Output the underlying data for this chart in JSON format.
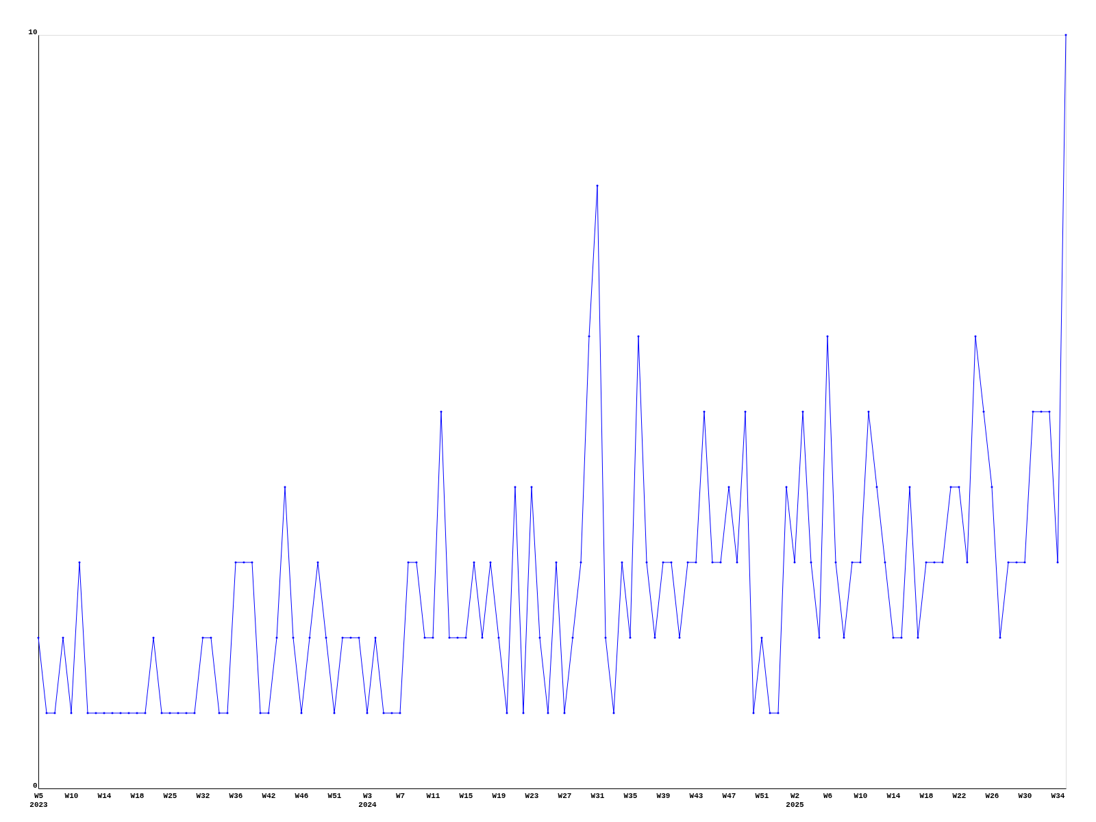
{
  "chart_data": {
    "type": "line",
    "categories": [
      "W5\n2023",
      null,
      null,
      null,
      "W10",
      null,
      null,
      null,
      "W14",
      null,
      null,
      null,
      "W18",
      null,
      null,
      null,
      "W25",
      null,
      null,
      null,
      "W32",
      null,
      null,
      null,
      "W36",
      null,
      null,
      null,
      "W42",
      null,
      null,
      null,
      "W46",
      null,
      null,
      null,
      "W51",
      null,
      null,
      null,
      "W3\n2024",
      null,
      null,
      null,
      "W7",
      null,
      null,
      null,
      "W11",
      null,
      null,
      null,
      "W15",
      null,
      null,
      null,
      "W19",
      null,
      null,
      null,
      "W23",
      null,
      null,
      null,
      "W27",
      null,
      null,
      null,
      "W31",
      null,
      null,
      null,
      "W35",
      null,
      null,
      null,
      "W39",
      null,
      null,
      null,
      "W43",
      null,
      null,
      null,
      "W47",
      null,
      null,
      null,
      "W51",
      null,
      null,
      null,
      "W2\n2025",
      null,
      null,
      null,
      "W6",
      null,
      null,
      null,
      "W10",
      null,
      null,
      null,
      "W14",
      null,
      null,
      null,
      "W18",
      null,
      null,
      null,
      "W22",
      null,
      null,
      null,
      "W26",
      null,
      null,
      null,
      "W30",
      null,
      null,
      null,
      "W34",
      null
    ],
    "series": [
      {
        "color": "#0000ff",
        "values": [
          2,
          1,
          1,
          2,
          1,
          3,
          1,
          1,
          1,
          1,
          1,
          1,
          1,
          1,
          2,
          1,
          1,
          1,
          1,
          1,
          2,
          2,
          1,
          1,
          3,
          3,
          3,
          1,
          1,
          2,
          4,
          2,
          1,
          2,
          3,
          2,
          1,
          2,
          2,
          2,
          1,
          2,
          1,
          1,
          1,
          3,
          3,
          2,
          2,
          5,
          2,
          2,
          2,
          3,
          2,
          3,
          2,
          1,
          4,
          1,
          4,
          2,
          1,
          3,
          1,
          2,
          3,
          6,
          8,
          2,
          1,
          3,
          2,
          6,
          3,
          2,
          3,
          3,
          2,
          3,
          3,
          5,
          3,
          3,
          4,
          3,
          5,
          1,
          2,
          1,
          1,
          4,
          3,
          5,
          3,
          2,
          6,
          3,
          2,
          3,
          3,
          5,
          4,
          3,
          2,
          2,
          4,
          2,
          3,
          3,
          3,
          4,
          4,
          3,
          6,
          5,
          4,
          2,
          3,
          3,
          3,
          5,
          5,
          5,
          3,
          10
        ]
      }
    ],
    "ylim": [
      0,
      10
    ],
    "yticks": [
      0,
      10
    ],
    "marker": "diamond"
  }
}
